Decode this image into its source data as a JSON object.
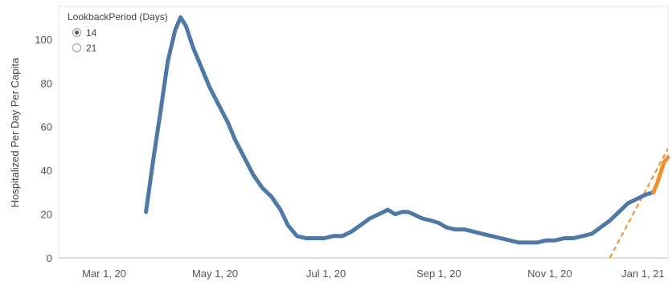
{
  "chart_data": {
    "type": "line",
    "ylabel": "Hospitalized Per Day Per Capita",
    "xlabel": "",
    "x_ticks": [
      "Mar 1, 20",
      "May 1, 20",
      "Jul 1, 20",
      "Sep 1, 20",
      "Nov 1, 20",
      "Jan 1, 21"
    ],
    "y_ticks": [
      0,
      20,
      40,
      60,
      80,
      100
    ],
    "xlim": [
      "2020-02-05",
      "2021-01-05"
    ],
    "ylim": [
      0,
      115
    ],
    "grid": false,
    "series": [
      {
        "color": "#4e79a7",
        "points": [
          [
            "2020-03-24",
            21
          ],
          [
            "2020-03-28",
            45
          ],
          [
            "2020-04-01",
            67
          ],
          [
            "2020-04-05",
            90
          ],
          [
            "2020-04-09",
            104
          ],
          [
            "2020-04-12",
            110
          ],
          [
            "2020-04-15",
            106
          ],
          [
            "2020-04-19",
            96
          ],
          [
            "2020-04-24",
            86
          ],
          [
            "2020-04-28",
            78
          ],
          [
            "2020-05-03",
            70
          ],
          [
            "2020-05-08",
            62
          ],
          [
            "2020-05-12",
            54
          ],
          [
            "2020-05-17",
            46
          ],
          [
            "2020-05-22",
            38
          ],
          [
            "2020-05-27",
            32
          ],
          [
            "2020-06-01",
            28
          ],
          [
            "2020-06-06",
            22
          ],
          [
            "2020-06-10",
            15
          ],
          [
            "2020-06-15",
            10
          ],
          [
            "2020-06-20",
            9
          ],
          [
            "2020-06-25",
            9
          ],
          [
            "2020-06-30",
            9
          ],
          [
            "2020-07-05",
            10
          ],
          [
            "2020-07-10",
            10
          ],
          [
            "2020-07-15",
            12
          ],
          [
            "2020-07-20",
            15
          ],
          [
            "2020-07-25",
            18
          ],
          [
            "2020-07-30",
            20
          ],
          [
            "2020-08-04",
            22
          ],
          [
            "2020-08-08",
            20
          ],
          [
            "2020-08-12",
            21
          ],
          [
            "2020-08-15",
            21
          ],
          [
            "2020-08-18",
            20
          ],
          [
            "2020-08-23",
            18
          ],
          [
            "2020-08-28",
            17
          ],
          [
            "2020-09-01",
            16
          ],
          [
            "2020-09-05",
            14
          ],
          [
            "2020-09-10",
            13
          ],
          [
            "2020-09-15",
            13
          ],
          [
            "2020-09-20",
            12
          ],
          [
            "2020-09-25",
            11
          ],
          [
            "2020-09-30",
            10
          ],
          [
            "2020-10-05",
            9
          ],
          [
            "2020-10-10",
            8
          ],
          [
            "2020-10-15",
            7
          ],
          [
            "2020-10-20",
            7
          ],
          [
            "2020-10-25",
            7
          ],
          [
            "2020-10-30",
            8
          ],
          [
            "2020-11-04",
            8
          ],
          [
            "2020-11-09",
            9
          ],
          [
            "2020-11-14",
            9
          ],
          [
            "2020-11-19",
            10
          ],
          [
            "2020-11-24",
            11
          ],
          [
            "2020-11-29",
            14
          ],
          [
            "2020-12-04",
            17
          ],
          [
            "2020-12-09",
            21
          ],
          [
            "2020-12-14",
            25
          ],
          [
            "2020-12-19",
            27
          ],
          [
            "2020-12-24",
            29
          ],
          [
            "2020-12-28",
            30
          ]
        ]
      },
      {
        "color": "#f28e2b",
        "points": [
          [
            "2020-12-28",
            30
          ],
          [
            "2020-12-30",
            34
          ],
          [
            "2021-01-01",
            39
          ],
          [
            "2021-01-03",
            44
          ],
          [
            "2021-01-05",
            46
          ]
        ]
      }
    ],
    "trend_line": {
      "color": "#f28e2b",
      "style": "dashed",
      "points": [
        [
          "2020-12-04",
          0
        ],
        [
          "2021-01-05",
          50
        ]
      ]
    }
  },
  "legend": {
    "title": "LookbackPeriod (Days)",
    "options": [
      "14",
      "21"
    ],
    "selected": "14"
  }
}
